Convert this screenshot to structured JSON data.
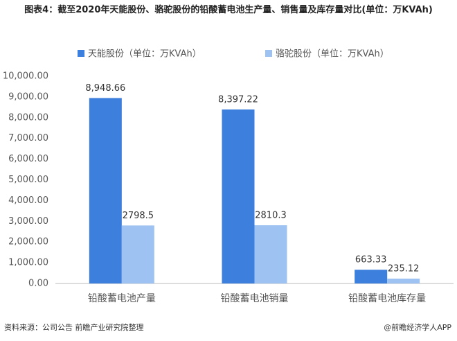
{
  "chart_data": {
    "type": "bar",
    "title": "图表4：截至2020年天能股份、骆驼股份的铅酸蓄电池生产量、销售量及库存量对比(单位：万KVAh)",
    "categories": [
      "铅酸蓄电池产量",
      "铅酸蓄电池销量",
      "铅酸蓄电池库存量"
    ],
    "series": [
      {
        "name": "天能股份（单位：万KVAh）",
        "color": "#3d7fdc",
        "values": [
          8948.66,
          8397.22,
          663.33
        ],
        "value_labels": [
          "8,948.66",
          "8,397.22",
          "663.33"
        ]
      },
      {
        "name": "骆驼股份（单位：万KVAh）",
        "color": "#9ec3f2",
        "values": [
          2798.5,
          2810.3,
          235.12
        ]
      }
    ],
    "ylim": [
      0,
      10000
    ],
    "yticks": [
      {
        "value": 0,
        "label": "0.00"
      },
      {
        "value": 1000,
        "label": "1,000.00"
      },
      {
        "value": 2000,
        "label": "2,000.00"
      },
      {
        "value": 3000,
        "label": "3,000.00"
      },
      {
        "value": 4000,
        "label": "4,000.00"
      },
      {
        "value": 5000,
        "label": "5,000.00"
      },
      {
        "value": 6000,
        "label": "6,000.00"
      },
      {
        "value": 7000,
        "label": "7,000.00"
      },
      {
        "value": 8000,
        "label": "8,000.00"
      },
      {
        "value": 9000,
        "label": "9,000.00"
      },
      {
        "value": 10000,
        "label": "10,000.00"
      }
    ],
    "source": "资料来源：公司公告 前瞻产业研究院整理",
    "footer": "@前瞻经济学人APP"
  }
}
